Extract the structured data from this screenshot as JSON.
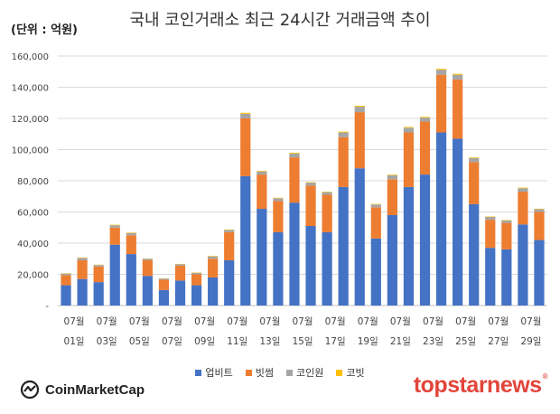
{
  "unit_label": "(단위 : 억원)",
  "brand_left": "CoinMarketCap",
  "brand_right": "topstarnews",
  "brand_right_mark": "®",
  "chart_data": {
    "type": "bar",
    "stacked": true,
    "title": "국내 코인거래소 최근 24시간 거래금액 추이",
    "ylim": [
      0,
      160000
    ],
    "yticks": [
      "-",
      "20,000",
      "40,000",
      "60,000",
      "80,000",
      "100,000",
      "120,000",
      "140,000",
      "160,000"
    ],
    "grid": true,
    "legend_position": "bottom",
    "x_tick_labels": [
      {
        "month": "07월",
        "day": "01일"
      },
      {
        "month": "07월",
        "day": "03일"
      },
      {
        "month": "07월",
        "day": "05일"
      },
      {
        "month": "07월",
        "day": "07일"
      },
      {
        "month": "07월",
        "day": "09일"
      },
      {
        "month": "07월",
        "day": "11일"
      },
      {
        "month": "07월",
        "day": "13일"
      },
      {
        "month": "07월",
        "day": "15일"
      },
      {
        "month": "07월",
        "day": "17일"
      },
      {
        "month": "07월",
        "day": "19일"
      },
      {
        "month": "07월",
        "day": "21일"
      },
      {
        "month": "07월",
        "day": "23일"
      },
      {
        "month": "07월",
        "day": "25일"
      },
      {
        "month": "07월",
        "day": "27일"
      },
      {
        "month": "07월",
        "day": "29일"
      }
    ],
    "categories": [
      "07월 01일",
      "07월 02일",
      "07월 03일",
      "07월 04일",
      "07월 05일",
      "07월 06일",
      "07월 07일",
      "07월 08일",
      "07월 09일",
      "07월 10일",
      "07월 11일",
      "07월 12일",
      "07월 13일",
      "07월 14일",
      "07월 15일",
      "07월 16일",
      "07월 17일",
      "07월 18일",
      "07월 19일",
      "07월 20일",
      "07월 21일",
      "07월 22일",
      "07월 23일",
      "07월 24일",
      "07월 25일",
      "07월 26일",
      "07월 27일",
      "07월 28일",
      "07월 29일",
      "07월 30일"
    ],
    "series": [
      {
        "name": "업비트",
        "color": "#4472c4",
        "values": [
          13000,
          17000,
          15000,
          39000,
          33000,
          19000,
          10000,
          16000,
          13000,
          18000,
          29000,
          83000,
          62000,
          47000,
          66000,
          51000,
          47000,
          76000,
          88000,
          43000,
          58000,
          76000,
          84000,
          111000,
          107000,
          65000,
          37000,
          36000,
          52000,
          42000
        ]
      },
      {
        "name": "빗썸",
        "color": "#ed7d31",
        "values": [
          6500,
          12000,
          10000,
          11000,
          12000,
          10000,
          6500,
          9500,
          7000,
          12000,
          18000,
          37000,
          22000,
          20000,
          29000,
          26000,
          24000,
          32000,
          36000,
          20000,
          23000,
          35000,
          34000,
          37000,
          38000,
          27000,
          18000,
          17000,
          21000,
          18000
        ]
      },
      {
        "name": "코인원",
        "color": "#a5a5a5",
        "values": [
          1000,
          1500,
          1000,
          1500,
          1500,
          1000,
          800,
          1000,
          1000,
          1500,
          1500,
          3000,
          2000,
          1800,
          2500,
          1800,
          1700,
          3000,
          3500,
          1800,
          2500,
          3000,
          2500,
          3200,
          3000,
          2500,
          1800,
          1500,
          2200,
          1800
        ]
      },
      {
        "name": "코빗",
        "color": "#ffc000",
        "values": [
          200,
          300,
          200,
          300,
          300,
          200,
          150,
          200,
          200,
          300,
          300,
          600,
          400,
          300,
          500,
          300,
          300,
          500,
          600,
          300,
          400,
          500,
          500,
          600,
          600,
          400,
          300,
          300,
          400,
          300
        ]
      }
    ]
  }
}
